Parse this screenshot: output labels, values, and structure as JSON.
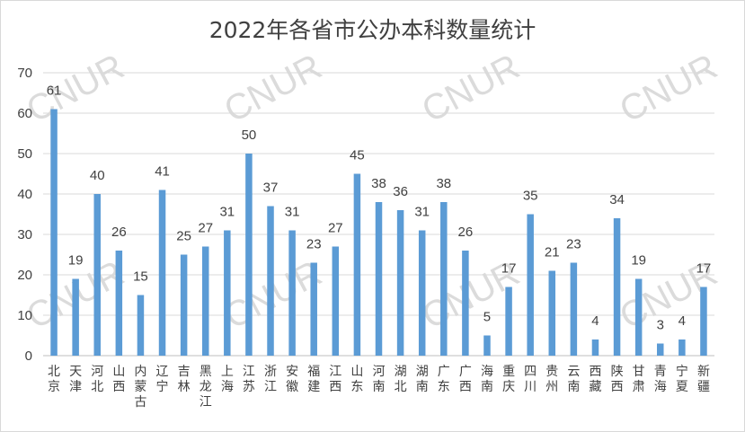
{
  "chart_data": {
    "type": "bar",
    "title": "2022年各省市公办本科数量统计",
    "categories": [
      "北京",
      "天津",
      "河北",
      "山西",
      "内蒙古",
      "辽宁",
      "吉林",
      "黑龙江",
      "上海",
      "江苏",
      "浙江",
      "安徽",
      "福建",
      "江西",
      "山东",
      "河南",
      "湖北",
      "湖南",
      "广东",
      "广西",
      "海南",
      "重庆",
      "四川",
      "贵州",
      "云南",
      "西藏",
      "陕西",
      "甘肃",
      "青海",
      "宁夏",
      "新疆"
    ],
    "values": [
      61,
      19,
      40,
      26,
      15,
      41,
      25,
      27,
      31,
      50,
      37,
      31,
      23,
      27,
      45,
      38,
      36,
      31,
      38,
      26,
      5,
      17,
      35,
      21,
      23,
      4,
      34,
      19,
      3,
      4,
      17
    ],
    "ylim": [
      0,
      70
    ],
    "yticks": [
      0,
      10,
      20,
      30,
      40,
      50,
      60,
      70
    ],
    "grid": true,
    "bar_color": "#5b9bd5",
    "watermark": "CNUR"
  }
}
